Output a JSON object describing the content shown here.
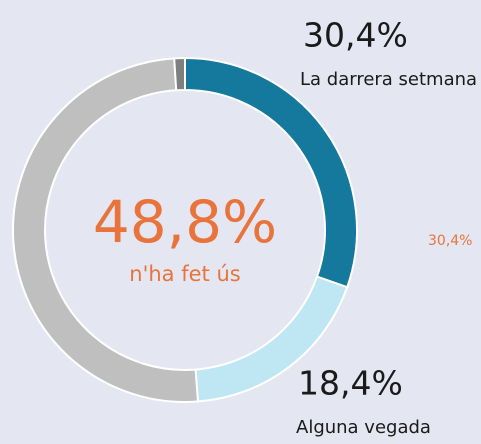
{
  "chart_data": {
    "type": "donut",
    "categories": [
      "La darrera setmana",
      "Alguna vegada",
      null,
      null
    ],
    "values": [
      30.4,
      18.4,
      50.2,
      1.0
    ],
    "value_labels": [
      "30,4%",
      "18,4%",
      null,
      null
    ],
    "colors": [
      "#15789d",
      "#bfe6f3",
      "#bfbfbf",
      "#7f7f7f"
    ],
    "center_value": "48,8%",
    "center_label": "n'ha fet ús",
    "annotation": "30,4%"
  }
}
